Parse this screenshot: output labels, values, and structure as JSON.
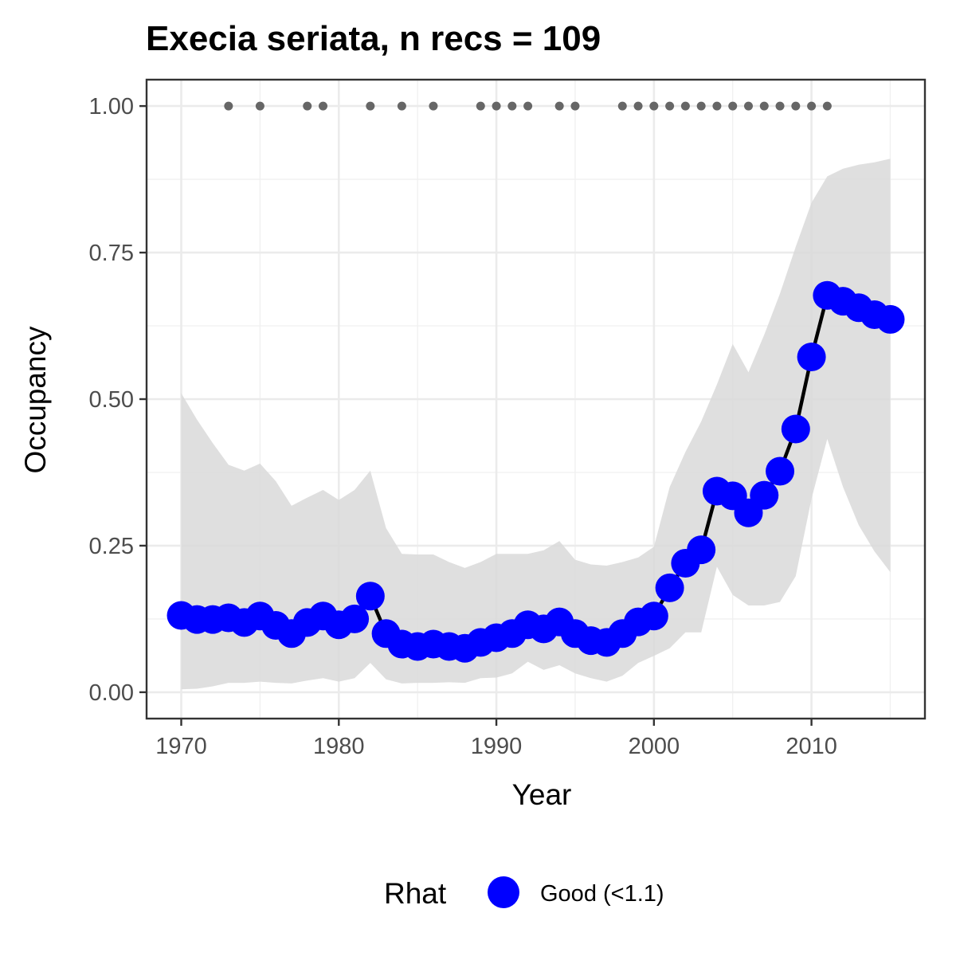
{
  "chart_data": {
    "type": "line",
    "title": "Execia seriata, n recs = 109",
    "xlabel": "Year",
    "ylabel": "Occupancy",
    "xlim": [
      1967.8,
      2017.2
    ],
    "ylim": [
      -0.045,
      1.045
    ],
    "x_ticks": [
      1970,
      1980,
      1990,
      2000,
      2010
    ],
    "x_tick_labels": [
      "1970",
      "1980",
      "1990",
      "2000",
      "2010"
    ],
    "y_ticks": [
      0,
      0.25,
      0.5,
      0.75,
      1
    ],
    "y_tick_labels": [
      "0.00",
      "0.25",
      "0.50",
      "0.75",
      "1.00"
    ],
    "grid": true,
    "legend": {
      "title": "Rhat",
      "position": "bottom",
      "entries": [
        {
          "label": "Good (<1.1)",
          "color": "#0000ff"
        }
      ]
    },
    "x": [
      1970,
      1971,
      1972,
      1973,
      1974,
      1975,
      1976,
      1977,
      1978,
      1979,
      1980,
      1981,
      1982,
      1983,
      1984,
      1985,
      1986,
      1987,
      1988,
      1989,
      1990,
      1991,
      1992,
      1993,
      1994,
      1995,
      1996,
      1997,
      1998,
      1999,
      2000,
      2001,
      2002,
      2003,
      2004,
      2005,
      2006,
      2007,
      2008,
      2009,
      2010,
      2011,
      2012,
      2013,
      2014,
      2015
    ],
    "series": [
      {
        "role": "mean",
        "color": "#0000ff",
        "line_color": "#000000",
        "values": [
          0.131,
          0.124,
          0.124,
          0.127,
          0.119,
          0.13,
          0.114,
          0.1,
          0.119,
          0.13,
          0.115,
          0.125,
          0.164,
          0.1,
          0.082,
          0.078,
          0.082,
          0.078,
          0.075,
          0.085,
          0.093,
          0.1,
          0.115,
          0.108,
          0.12,
          0.1,
          0.088,
          0.085,
          0.1,
          0.12,
          0.13,
          0.178,
          0.22,
          0.243,
          0.343,
          0.335,
          0.306,
          0.336,
          0.377,
          0.449,
          0.572,
          0.677,
          0.667,
          0.656,
          0.644,
          0.636
        ]
      },
      {
        "role": "ci_upper",
        "color": "#d9d9d9",
        "values": [
          0.51,
          0.465,
          0.425,
          0.388,
          0.378,
          0.39,
          0.36,
          0.318,
          0.332,
          0.345,
          0.328,
          0.345,
          0.378,
          0.28,
          0.236,
          0.235,
          0.235,
          0.222,
          0.212,
          0.222,
          0.236,
          0.236,
          0.236,
          0.242,
          0.258,
          0.226,
          0.218,
          0.216,
          0.222,
          0.23,
          0.248,
          0.35,
          0.41,
          0.462,
          0.525,
          0.594,
          0.546,
          0.61,
          0.68,
          0.76,
          0.835,
          0.88,
          0.893,
          0.9,
          0.904,
          0.91
        ]
      },
      {
        "role": "ci_lower",
        "color": "#d9d9d9",
        "values": [
          0.005,
          0.006,
          0.01,
          0.016,
          0.016,
          0.018,
          0.016,
          0.015,
          0.02,
          0.024,
          0.018,
          0.024,
          0.05,
          0.022,
          0.015,
          0.016,
          0.016,
          0.017,
          0.016,
          0.024,
          0.025,
          0.032,
          0.052,
          0.038,
          0.046,
          0.032,
          0.024,
          0.018,
          0.028,
          0.05,
          0.062,
          0.075,
          0.102,
          0.102,
          0.214,
          0.166,
          0.148,
          0.148,
          0.154,
          0.198,
          0.33,
          0.432,
          0.35,
          0.285,
          0.24,
          0.205
        ]
      }
    ],
    "record_years": [
      1973,
      1975,
      1978,
      1979,
      1982,
      1984,
      1986,
      1989,
      1990,
      1991,
      1992,
      1994,
      1995,
      1998,
      1999,
      2000,
      2001,
      2002,
      2003,
      2004,
      2005,
      2006,
      2007,
      2008,
      2009,
      2010,
      2011
    ],
    "record_y": 1.0,
    "record_color": "#666666"
  }
}
